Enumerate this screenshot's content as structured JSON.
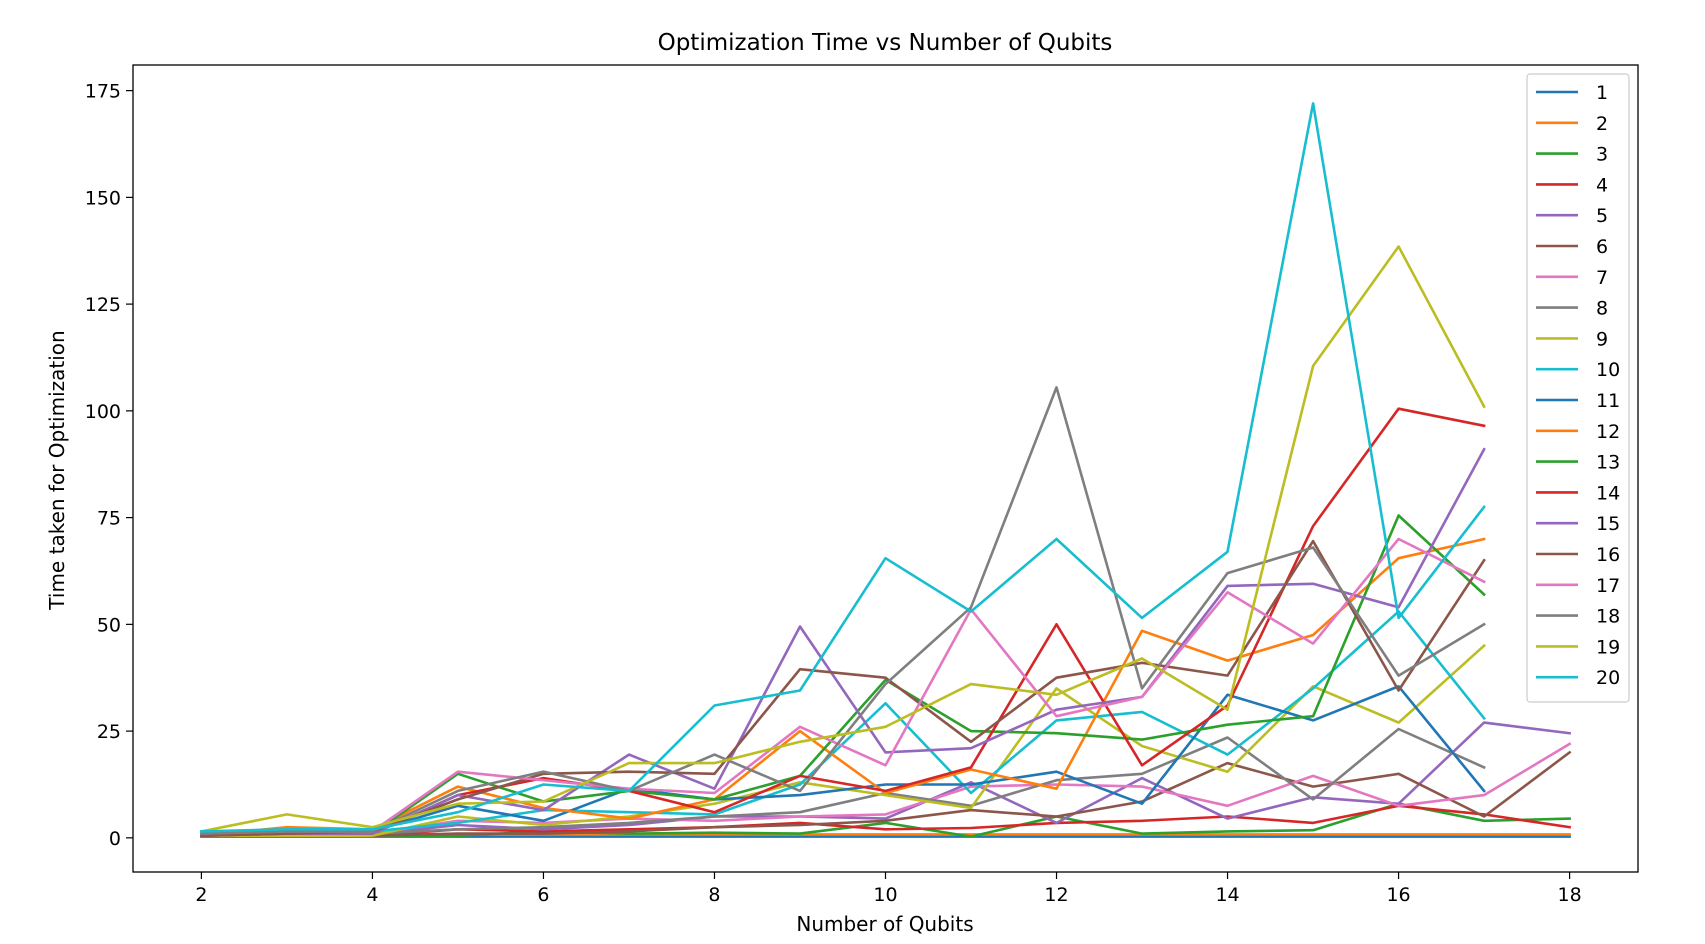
{
  "chart_data": {
    "type": "line",
    "title": "Optimization Time vs Number of Qubits",
    "xlabel": "Number of Qubits",
    "ylabel": "Time taken for Optimization",
    "xlim": [
      1.2,
      18.8
    ],
    "ylim": [
      -8,
      181
    ],
    "xticks": [
      2,
      4,
      6,
      8,
      10,
      12,
      14,
      16,
      18
    ],
    "yticks": [
      0,
      25,
      50,
      75,
      100,
      125,
      150,
      175
    ],
    "grid": false,
    "legend_position": "top-right",
    "x": [
      2,
      3,
      4,
      5,
      6,
      7,
      8,
      9,
      10,
      11,
      12,
      13,
      14,
      15,
      16,
      17,
      18
    ],
    "series": [
      {
        "name": "1",
        "color": "#1f77b4",
        "values": [
          0.3,
          0.3,
          0.3,
          0.3,
          0.3,
          0.3,
          0.3,
          0.3,
          0.3,
          0.3,
          0.3,
          0.3,
          0.3,
          0.3,
          0.3,
          0.3,
          0.3
        ]
      },
      {
        "name": "2",
        "color": "#ff7f0e",
        "values": [
          0.8,
          0.8,
          0.8,
          0.8,
          0.8,
          0.8,
          0.8,
          0.8,
          0.8,
          0.8,
          0.8,
          0.8,
          0.8,
          0.8,
          0.8,
          0.8,
          0.8
        ]
      },
      {
        "name": "3",
        "color": "#2ca02c",
        "values": [
          0.5,
          0.5,
          0.5,
          0.5,
          1.5,
          1.0,
          1.2,
          1.0,
          3.5,
          0.3,
          5.0,
          1.0,
          1.5,
          1.8,
          8.0,
          4.0,
          4.5
        ]
      },
      {
        "name": "4",
        "color": "#d62728",
        "values": [
          0.5,
          0.5,
          0.5,
          2.0,
          1.5,
          2.0,
          2.5,
          3.5,
          2.0,
          2.3,
          3.5,
          4.0,
          5.0,
          3.5,
          7.5,
          5.5,
          2.5
        ]
      },
      {
        "name": "5",
        "color": "#9467bd",
        "values": [
          0.8,
          0.8,
          0.8,
          3.0,
          2.0,
          3.0,
          5.0,
          5.0,
          4.5,
          13.0,
          3.5,
          14.0,
          4.5,
          9.5,
          8.0,
          27.0,
          24.5
        ]
      },
      {
        "name": "6",
        "color": "#8c564b",
        "values": [
          0.5,
          0.5,
          0.5,
          1.0,
          1.0,
          1.5,
          2.5,
          3.0,
          4.0,
          6.5,
          5.0,
          8.5,
          17.5,
          12.0,
          15.0,
          5.0,
          20.0
        ]
      },
      {
        "name": "7",
        "color": "#e377c2",
        "values": [
          0.5,
          1.0,
          1.0,
          4.0,
          3.5,
          4.5,
          4.0,
          5.0,
          5.5,
          12.0,
          12.5,
          12.0,
          7.5,
          14.5,
          7.5,
          10.0,
          22.0
        ]
      },
      {
        "name": "8",
        "color": "#7f7f7f",
        "values": [
          0.5,
          0.5,
          1.0,
          2.0,
          2.5,
          3.5,
          5.0,
          6.0,
          10.5,
          7.5,
          13.5,
          15.0,
          23.5,
          9.0,
          25.5,
          16.5,
          null
        ]
      },
      {
        "name": "9",
        "color": "#bcbd22",
        "values": [
          0.5,
          0.5,
          0.5,
          5.0,
          3.0,
          5.0,
          8.0,
          13.0,
          10.0,
          7.0,
          35.0,
          21.5,
          15.5,
          35.5,
          27.0,
          45.0,
          null
        ]
      },
      {
        "name": "10",
        "color": "#17becf",
        "values": [
          1.5,
          1.5,
          1.5,
          3.5,
          6.5,
          6.0,
          5.5,
          12.5,
          31.5,
          10.5,
          27.5,
          29.5,
          19.5,
          35.0,
          53.0,
          28.0,
          null
        ]
      },
      {
        "name": "11",
        "color": "#1f77b4",
        "values": [
          0.5,
          1.5,
          1.5,
          7.5,
          4.0,
          11.5,
          9.0,
          10.0,
          12.5,
          12.5,
          15.5,
          8.0,
          33.5,
          27.5,
          35.5,
          11.0,
          null
        ]
      },
      {
        "name": "12",
        "color": "#ff7f0e",
        "values": [
          0.5,
          2.5,
          2.0,
          12.0,
          7.0,
          4.5,
          9.0,
          25.0,
          10.5,
          16.0,
          11.5,
          48.5,
          41.5,
          47.5,
          65.5,
          70.0,
          null
        ]
      },
      {
        "name": "13",
        "color": "#2ca02c",
        "values": [
          0.5,
          1.5,
          1.0,
          15.0,
          8.5,
          11.0,
          9.0,
          14.5,
          37.0,
          25.0,
          24.5,
          23.0,
          26.5,
          28.5,
          75.5,
          57.0,
          null
        ]
      },
      {
        "name": "14",
        "color": "#d62728",
        "values": [
          0.5,
          1.0,
          1.0,
          10.0,
          14.0,
          11.0,
          6.0,
          14.5,
          11.0,
          16.5,
          50.0,
          17.0,
          31.0,
          73.0,
          100.5,
          96.5,
          null
        ]
      },
      {
        "name": "15",
        "color": "#9467bd",
        "values": [
          0.5,
          1.0,
          1.0,
          10.0,
          6.5,
          19.5,
          11.5,
          49.5,
          20.0,
          21.0,
          30.0,
          33.0,
          59.0,
          59.5,
          54.0,
          91.0,
          null
        ]
      },
      {
        "name": "16",
        "color": "#8c564b",
        "values": [
          0.5,
          1.0,
          1.5,
          9.0,
          15.0,
          15.5,
          15.0,
          39.5,
          37.5,
          22.5,
          37.5,
          41.0,
          38.0,
          69.5,
          34.5,
          65.0,
          null
        ]
      },
      {
        "name": "17",
        "color": "#e377c2",
        "values": [
          1.0,
          1.5,
          1.5,
          15.5,
          13.5,
          11.5,
          10.5,
          26.0,
          17.0,
          53.5,
          28.5,
          33.0,
          57.5,
          45.5,
          70.0,
          60.0,
          null
        ]
      },
      {
        "name": "18",
        "color": "#7f7f7f",
        "values": [
          1.0,
          1.5,
          1.5,
          11.0,
          15.5,
          11.0,
          19.5,
          11.0,
          36.0,
          54.0,
          105.5,
          35.0,
          62.0,
          68.0,
          38.0,
          50.0,
          null
        ]
      },
      {
        "name": "19",
        "color": "#bcbd22",
        "values": [
          1.5,
          5.5,
          2.5,
          8.0,
          8.5,
          17.5,
          17.5,
          22.5,
          26.0,
          36.0,
          33.5,
          42.0,
          30.0,
          110.5,
          138.5,
          101.0,
          null
        ]
      },
      {
        "name": "20",
        "color": "#17becf",
        "values": [
          1.5,
          2.0,
          2.0,
          6.0,
          12.5,
          11.0,
          31.0,
          34.5,
          65.5,
          53.0,
          70.0,
          51.5,
          67.0,
          172.0,
          51.5,
          77.5,
          null
        ]
      }
    ]
  }
}
